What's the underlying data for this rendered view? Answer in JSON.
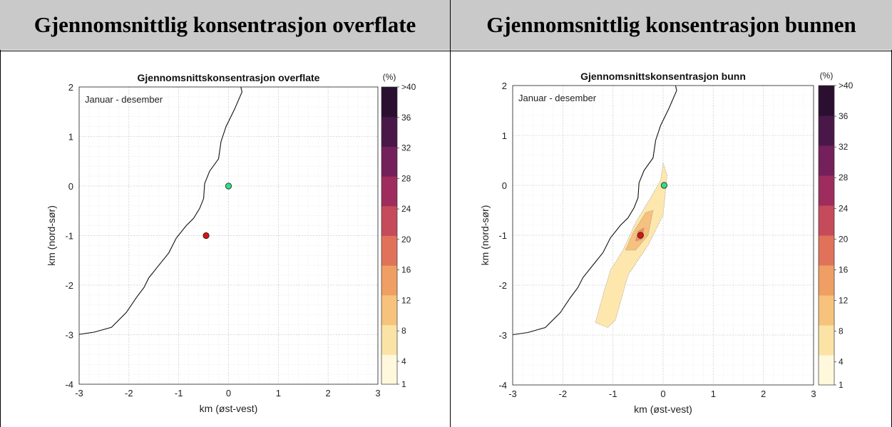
{
  "headers": {
    "left": "Gjennomsnittlig konsentrasjon overflate",
    "right": "Gjennomsnittlig konsentrasjon bunnen"
  },
  "colorbar": {
    "unit_label": "(%)",
    "ticks": [
      ">40",
      "36",
      "32",
      "28",
      "24",
      "20",
      "16",
      "12",
      "8",
      "4",
      "1"
    ],
    "tick_values": [
      40,
      36,
      32,
      28,
      24,
      20,
      16,
      12,
      8,
      4,
      1
    ],
    "colors": [
      "#fff8dc",
      "#fbe3a6",
      "#f6c27c",
      "#ef9f63",
      "#e1725a",
      "#c64b5a",
      "#9e2d5d",
      "#74205b",
      "#4a1749",
      "#2a0f30"
    ]
  },
  "chart_data": [
    {
      "type": "contour",
      "title": "Gjennomsnittskonsentrasjon overflate",
      "annotation": "Januar - desember",
      "xlabel": "km (øst-vest)",
      "ylabel": "km (nord-sør)",
      "xlim": [
        -3,
        3
      ],
      "ylim": [
        -4,
        2
      ],
      "xticks": [
        -3,
        -2,
        -1,
        0,
        1,
        2,
        3
      ],
      "yticks": [
        2,
        1,
        0,
        -1,
        -2,
        -3,
        -4
      ],
      "grid": true,
      "markers": [
        {
          "name": "green",
          "x": 0.0,
          "y": 0.0,
          "color": "#33dd88"
        },
        {
          "name": "red",
          "x": -0.45,
          "y": -1.0,
          "color": "#dd1111"
        }
      ],
      "contours": []
    },
    {
      "type": "contour",
      "title": "Gjennomsnittskonsentrasjon bunn",
      "annotation": "Januar - desember",
      "xlabel": "km (øst-vest)",
      "ylabel": "km (nord-sør)",
      "xlim": [
        -3,
        3
      ],
      "ylim": [
        -4,
        2
      ],
      "xticks": [
        -3,
        -2,
        -1,
        0,
        1,
        2,
        3
      ],
      "yticks": [
        2,
        1,
        0,
        -1,
        -2,
        -3,
        -4
      ],
      "grid": true,
      "markers": [
        {
          "name": "green",
          "x": 0.02,
          "y": 0.0,
          "color": "#33dd88"
        },
        {
          "name": "red",
          "x": -0.45,
          "y": -1.0,
          "color": "#dd1111"
        }
      ],
      "contours": [
        {
          "level": 1,
          "color": "#fde7ad",
          "points": [
            [
              0.0,
              0.45
            ],
            [
              0.08,
              0.2
            ],
            [
              0.0,
              -0.6
            ],
            [
              -0.3,
              -1.2
            ],
            [
              -0.7,
              -1.8
            ],
            [
              -0.95,
              -2.7
            ],
            [
              -1.1,
              -2.85
            ],
            [
              -1.35,
              -2.75
            ],
            [
              -1.2,
              -2.2
            ],
            [
              -1.05,
              -1.7
            ],
            [
              -0.8,
              -1.3
            ],
            [
              -0.55,
              -0.75
            ],
            [
              -0.25,
              -0.25
            ],
            [
              -0.05,
              0.1
            ]
          ]
        },
        {
          "level": 4,
          "color": "#f6c07e",
          "points": [
            [
              -0.2,
              -0.5
            ],
            [
              -0.3,
              -1.0
            ],
            [
              -0.55,
              -1.3
            ],
            [
              -0.75,
              -1.3
            ],
            [
              -0.6,
              -0.95
            ],
            [
              -0.35,
              -0.55
            ]
          ]
        },
        {
          "level": 8,
          "color": "#ec8f60",
          "points": [
            [
              -0.38,
              -0.85
            ],
            [
              -0.42,
              -1.08
            ],
            [
              -0.55,
              -1.12
            ],
            [
              -0.5,
              -0.92
            ]
          ]
        }
      ]
    }
  ]
}
